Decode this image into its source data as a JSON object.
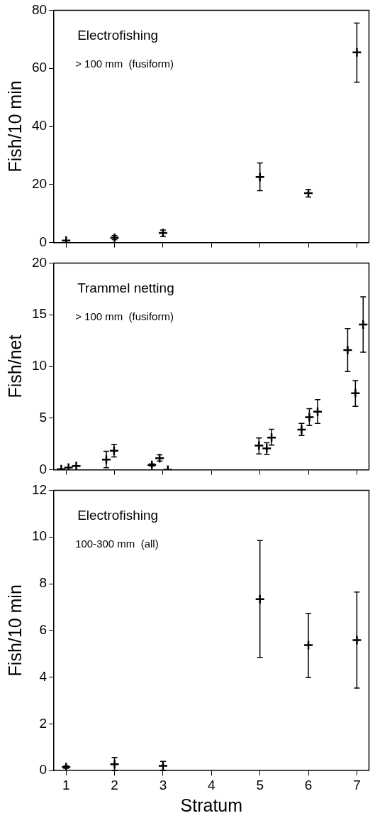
{
  "chart_data": [
    {
      "type": "scatter",
      "title": "Electrofishing",
      "subtitle": "> 100 mm  (fusiform)",
      "ylabel": "Fish/10 min",
      "xlim": [
        0.75,
        7.25
      ],
      "xticks": [
        1,
        2,
        3,
        4,
        5,
        6,
        7
      ],
      "ylim": [
        0,
        80
      ],
      "yticks": [
        0,
        20,
        40,
        60,
        80
      ],
      "tick_labels": "y",
      "x": [
        1,
        2,
        3,
        5,
        6,
        7
      ],
      "marker": "cross",
      "series": [
        {
          "color": "#000000",
          "values": [
            0.7,
            1.7,
            3.3,
            22.6,
            17.0,
            65.5
          ],
          "errors": [
            null,
            [
              1.0,
              2.4
            ],
            [
              2.1,
              4.3
            ],
            [
              17.9,
              27.4
            ],
            [
              15.7,
              18.3
            ],
            [
              55.2,
              75.6
            ]
          ]
        }
      ]
    },
    {
      "type": "scatter",
      "title": "Trammel netting",
      "subtitle": "> 100 mm  (fusiform)",
      "ylabel": "Fish/net",
      "xlim": [
        0.75,
        7.25
      ],
      "xticks": [
        1,
        2,
        3,
        4,
        5,
        6,
        7
      ],
      "ylim": [
        0,
        20
      ],
      "yticks": [
        0,
        5,
        10,
        15,
        20
      ],
      "tick_labels": "y",
      "x": [
        0.9,
        1.05,
        1.21,
        1.83,
        1.99,
        2.77,
        2.93,
        3.1,
        4.98,
        5.14,
        5.24,
        5.86,
        6.02,
        6.19,
        6.81,
        6.97,
        7.13
      ],
      "marker": "cross",
      "series": [
        {
          "color": "#000000",
          "values": [
            0.05,
            0.22,
            0.37,
            0.98,
            1.85,
            0.47,
            1.12,
            0.0,
            2.34,
            2.06,
            3.12,
            3.89,
            5.09,
            5.62,
            11.58,
            7.4,
            14.06
          ],
          "errors": [
            null,
            null,
            null,
            [
              0.2,
              1.79
            ],
            [
              1.24,
              2.47
            ],
            [
              0.37,
              0.57
            ],
            [
              0.84,
              1.45
            ],
            null,
            [
              1.53,
              3.08
            ],
            [
              1.49,
              2.61
            ],
            [
              2.4,
              3.93
            ],
            [
              3.32,
              4.48
            ],
            [
              4.28,
              5.91
            ],
            [
              4.48,
              6.79
            ],
            [
              9.5,
              13.65
            ],
            [
              6.13,
              8.62
            ],
            [
              11.37,
              16.73
            ]
          ]
        }
      ]
    },
    {
      "type": "scatter",
      "title": "Electrofishing",
      "subtitle": "100-300 mm  (all)",
      "xlabel": "Stratum",
      "ylabel": "Fish/10 min",
      "xlim": [
        0.75,
        7.25
      ],
      "xticks": [
        1,
        2,
        3,
        4,
        5,
        6,
        7
      ],
      "ylim": [
        0,
        12
      ],
      "yticks": [
        0,
        2,
        4,
        6,
        8,
        10,
        12
      ],
      "x": [
        1,
        2,
        3,
        5,
        6,
        7
      ],
      "marker": "cross",
      "series": [
        {
          "color": "#000000",
          "values": [
            0.15,
            0.27,
            0.2,
            7.34,
            5.37,
            5.58
          ],
          "errors": [
            [
              0.1,
              0.2
            ],
            [
              0.0,
              0.56
            ],
            [
              0.0,
              0.39
            ],
            [
              4.85,
              9.85
            ],
            [
              3.98,
              6.73
            ],
            [
              3.53,
              7.64
            ]
          ]
        }
      ]
    }
  ]
}
